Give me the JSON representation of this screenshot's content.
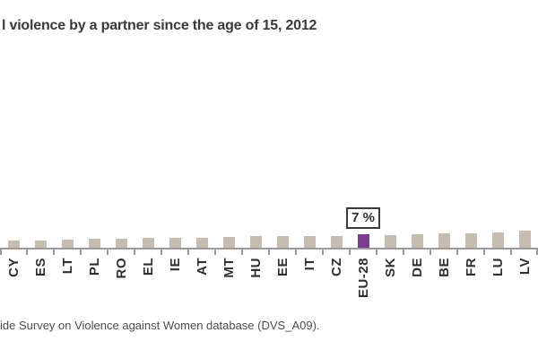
{
  "page": {
    "background": "#ffffff"
  },
  "title": {
    "text": "l violence by a partner since the age of 15, 2012"
  },
  "source_note": {
    "text": "ide Survey on Violence against Women database (DVS_A09)."
  },
  "chart_data": {
    "type": "bar",
    "title": "l violence by a partner since the age of 15, 2012",
    "xlabel": "",
    "ylabel": "",
    "grid": false,
    "legend": false,
    "ylim": [
      0,
      12
    ],
    "categories": [
      "CY",
      "ES",
      "LT",
      "PL",
      "RO",
      "EL",
      "IE",
      "AT",
      "MT",
      "HU",
      "EE",
      "IT",
      "CZ",
      "EU-28",
      "SK",
      "DE",
      "BE",
      "FR",
      "LU",
      "LV"
    ],
    "values": [
      4.0,
      4.1,
      4.3,
      4.6,
      4.6,
      5.2,
      5.2,
      5.3,
      5.7,
      6.0,
      6.0,
      6.0,
      6.1,
      7.0,
      6.5,
      7.0,
      7.5,
      7.5,
      7.7,
      8.5
    ],
    "highlight_category": "EU-28",
    "highlight_value_label": "7 %",
    "colors": {
      "bar_default": "#C7BCB1",
      "bar_highlight": "#7B3E8E",
      "axis": "#9A9A9A",
      "label_text": "#2F2F2F",
      "title_text": "#3A3A3A",
      "source_text": "#4D4D4D"
    }
  }
}
